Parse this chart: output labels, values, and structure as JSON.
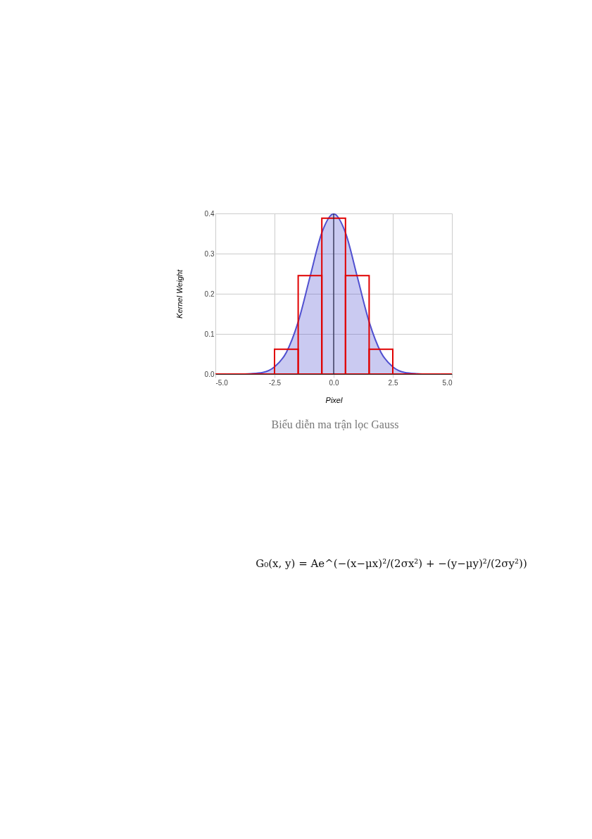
{
  "chart_data": {
    "type": "area",
    "xlabel": "Pixel",
    "ylabel": "Kernel Weight",
    "xlim": [
      -5,
      5
    ],
    "xticks": [
      {
        "value": -5,
        "label": "-5.0"
      },
      {
        "value": -2.5,
        "label": "-2.5"
      },
      {
        "value": 0,
        "label": "0.0"
      },
      {
        "value": 2.5,
        "label": "2.5"
      },
      {
        "value": 5,
        "label": "5.0"
      }
    ],
    "ylim": [
      0,
      0.4
    ],
    "yticks": [
      {
        "value": 0,
        "label": "0.0"
      },
      0.1,
      0.2,
      0.3,
      0.4
    ],
    "grid": true,
    "series": [
      {
        "color": "#5050d0",
        "x": [
          -5,
          -4.5,
          -4,
          -3.5,
          -3,
          -2.5,
          -2,
          -1.5,
          -1,
          -0.5,
          0,
          0.5,
          1,
          1.5,
          2,
          2.5,
          3,
          3.5,
          4,
          4.5,
          5
        ],
        "values": [
          0,
          0,
          0,
          0.001,
          0.004,
          0.018,
          0.054,
          0.13,
          0.242,
          0.352,
          0.399,
          0.352,
          0.242,
          0.13,
          0.054,
          0.018,
          0.004,
          0.001,
          0,
          0,
          0
        ]
      },
      {
        "type": "bar",
        "color": "#e00000",
        "x": [
          -5,
          -4,
          -3,
          -2,
          -1,
          0,
          1,
          2,
          3,
          4,
          5
        ],
        "values": [
          0,
          0,
          0,
          0.062,
          0.245,
          0.388,
          0.245,
          0.062,
          0,
          0,
          0
        ]
      }
    ],
    "ref_lines": [
      {
        "axis": "x",
        "value": 0,
        "color": "#222244"
      }
    ],
    "annotations": [
      "Biểu diễn ma trận lọc Gauss",
      "G₀(x, y) = Ae^(−(x−μx)²/(2σx²) + −(y−μy)²/(2σy²))"
    ]
  }
}
